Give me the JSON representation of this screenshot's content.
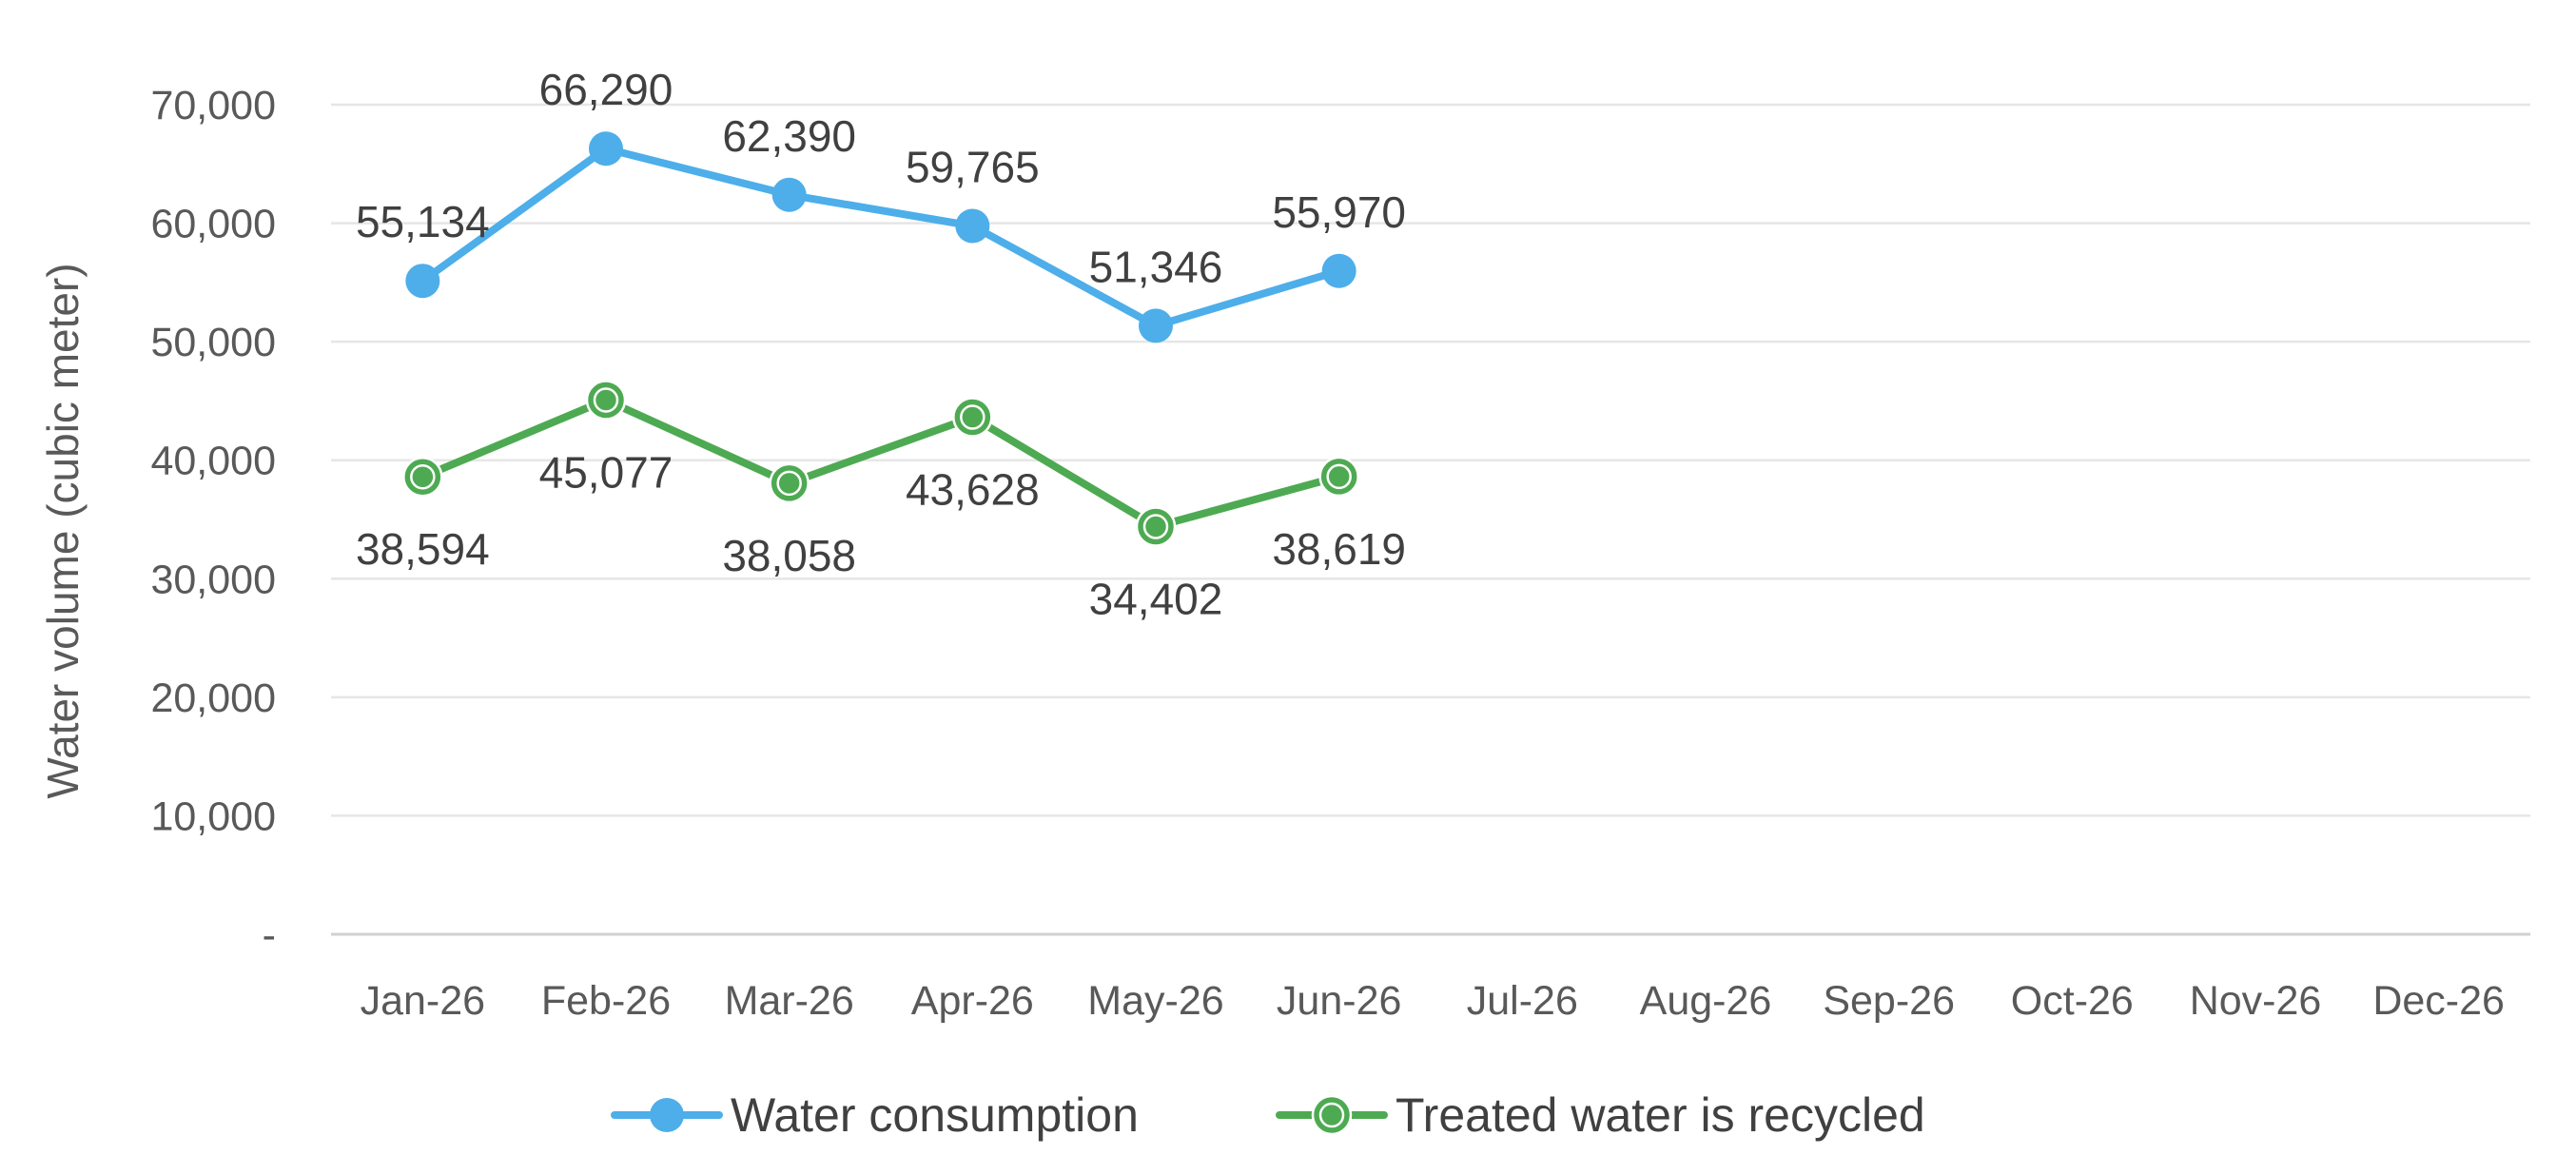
{
  "chart_data": {
    "type": "line",
    "title": "",
    "xlabel": "",
    "ylabel": "Water volume (cubic meter)",
    "categories": [
      "Jan-26",
      "Feb-26",
      "Mar-26",
      "Apr-26",
      "May-26",
      "Jun-26",
      "Jul-26",
      "Aug-26",
      "Sep-26",
      "Oct-26",
      "Nov-26",
      "Dec-26"
    ],
    "ylim": [
      0,
      70000
    ],
    "yticks": [
      0,
      10000,
      20000,
      30000,
      40000,
      50000,
      60000,
      70000
    ],
    "ytick_labels": [
      "-",
      "10,000",
      "20,000",
      "30,000",
      "40,000",
      "50,000",
      "60,000",
      "70,000"
    ],
    "grid": true,
    "legend_position": "bottom",
    "series": [
      {
        "name": "Water consumption",
        "color": "#4DAEEA",
        "marker": "circle",
        "values": [
          55134,
          66290,
          62390,
          59765,
          51346,
          55970,
          null,
          null,
          null,
          null,
          null,
          null
        ],
        "labels": [
          "55,134",
          "66,290",
          "62,390",
          "59,765",
          "51,346",
          "55,970"
        ],
        "label_position": "above"
      },
      {
        "name": "Treated water is recycled",
        "color": "#4EAA52",
        "marker": "ringed-circle",
        "values": [
          38594,
          45077,
          38058,
          43628,
          34402,
          38619,
          null,
          null,
          null,
          null,
          null,
          null
        ],
        "labels": [
          "38,594",
          "45,077",
          "38,058",
          "43,628",
          "34,402",
          "38,619"
        ],
        "label_position": "below"
      }
    ]
  }
}
